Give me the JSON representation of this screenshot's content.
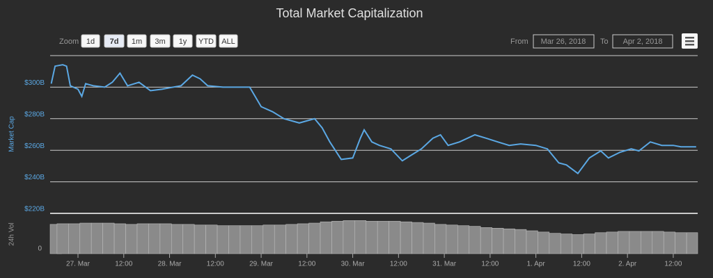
{
  "range_selector": {
    "zoom_label": "Zoom",
    "buttons": [
      "1d",
      "7d",
      "1m",
      "3m",
      "1y",
      "YTD",
      "ALL"
    ],
    "selected": 1,
    "from_label": "From",
    "from": "Mar 26, 2018",
    "to_label": "To",
    "to": "Apr 2, 2018"
  },
  "chart_data": [
    {
      "type": "line",
      "title": "Total Market Capitalization",
      "ylabel": "Market Cap",
      "color": "#5ba8e4",
      "x": [
        -7,
        -6,
        -4,
        -3,
        -2,
        0,
        1,
        2,
        4,
        7,
        9,
        11,
        13,
        16,
        19,
        22,
        24,
        27,
        30,
        32,
        34,
        38,
        42,
        45,
        48,
        51,
        54,
        58,
        62,
        64,
        66,
        69,
        72,
        74,
        75,
        77,
        79,
        82,
        85,
        87,
        90,
        93,
        95,
        97,
        100,
        104,
        107,
        110,
        113,
        116,
        120,
        123,
        126,
        128,
        131,
        134,
        137,
        139,
        142,
        145,
        147,
        150,
        153,
        156,
        158,
        162
      ],
      "values": [
        302.2,
        313.3,
        314.2,
        313.3,
        300.9,
        298.7,
        294.2,
        302.2,
        300.9,
        300,
        303.1,
        308.9,
        300.9,
        303.1,
        297.8,
        298.7,
        299.6,
        300.9,
        307.6,
        305.3,
        300.9,
        300,
        300,
        300,
        287.6,
        284.4,
        280,
        277.3,
        280,
        274.2,
        265.3,
        254.2,
        255.1,
        267.6,
        272.9,
        265.3,
        263.1,
        260.9,
        253.3,
        256.4,
        260.9,
        267.6,
        269.8,
        263.1,
        265.3,
        269.8,
        267.6,
        265.3,
        263.1,
        264,
        263.1,
        260.9,
        252,
        250.7,
        245.3,
        255.1,
        259.6,
        255.1,
        258.7,
        260.9,
        259.6,
        265.3,
        263.1,
        263.1,
        262.2,
        262.2
      ],
      "xlim": [
        -7.3,
        162.4
      ],
      "ylim": [
        220,
        320
      ],
      "yticks": [
        {
          "value": 220,
          "label": "$220B"
        },
        {
          "value": 240,
          "label": "$240B"
        },
        {
          "value": 260,
          "label": "$260B"
        },
        {
          "value": 280,
          "label": "$280B"
        },
        {
          "value": 300,
          "label": "$300B"
        }
      ],
      "grid": true
    },
    {
      "type": "bar",
      "ylabel": "24h Vol",
      "color": "#8a8a8a",
      "x": [
        -7,
        -4,
        -1,
        2,
        5,
        8,
        11,
        14,
        17,
        20,
        23,
        26,
        29,
        32,
        35,
        38,
        41,
        44,
        47,
        50,
        53,
        56,
        59,
        62,
        65,
        68,
        71,
        74,
        77,
        80,
        83,
        86,
        89,
        92,
        95,
        98,
        101,
        104,
        107,
        110,
        113,
        116,
        119,
        122,
        125,
        128,
        131,
        134,
        137,
        140,
        143,
        146,
        149,
        152,
        155,
        158,
        161
      ],
      "values": [
        46,
        47,
        47,
        48,
        48,
        48,
        47,
        46,
        47,
        47,
        47,
        46,
        46,
        45,
        45,
        44,
        44,
        44,
        44,
        45,
        45,
        46,
        47,
        48,
        50,
        51,
        52,
        52,
        51,
        51,
        51,
        50,
        49,
        48,
        46,
        45,
        44,
        43,
        41,
        40,
        39,
        38,
        36,
        34,
        32,
        31,
        30,
        31,
        33,
        34,
        35,
        35,
        35,
        35,
        34,
        33,
        33
      ],
      "xlim": [
        -7.3,
        162.4
      ],
      "ylim": [
        0,
        60
      ],
      "yticks": [
        0
      ],
      "xticks": [
        {
          "value": 0,
          "label": "27. Mar"
        },
        {
          "value": 12,
          "label": "12:00"
        },
        {
          "value": 24,
          "label": "28. Mar"
        },
        {
          "value": 36,
          "label": "12:00"
        },
        {
          "value": 48,
          "label": "29. Mar"
        },
        {
          "value": 60,
          "label": "12:00"
        },
        {
          "value": 72,
          "label": "30. Mar"
        },
        {
          "value": 84,
          "label": "12:00"
        },
        {
          "value": 96,
          "label": "31. Mar"
        },
        {
          "value": 108,
          "label": "12:00"
        },
        {
          "value": 120,
          "label": "1. Apr"
        },
        {
          "value": 132,
          "label": "12:00"
        },
        {
          "value": 144,
          "label": "2. Apr"
        },
        {
          "value": 156,
          "label": "12:00"
        }
      ]
    }
  ]
}
